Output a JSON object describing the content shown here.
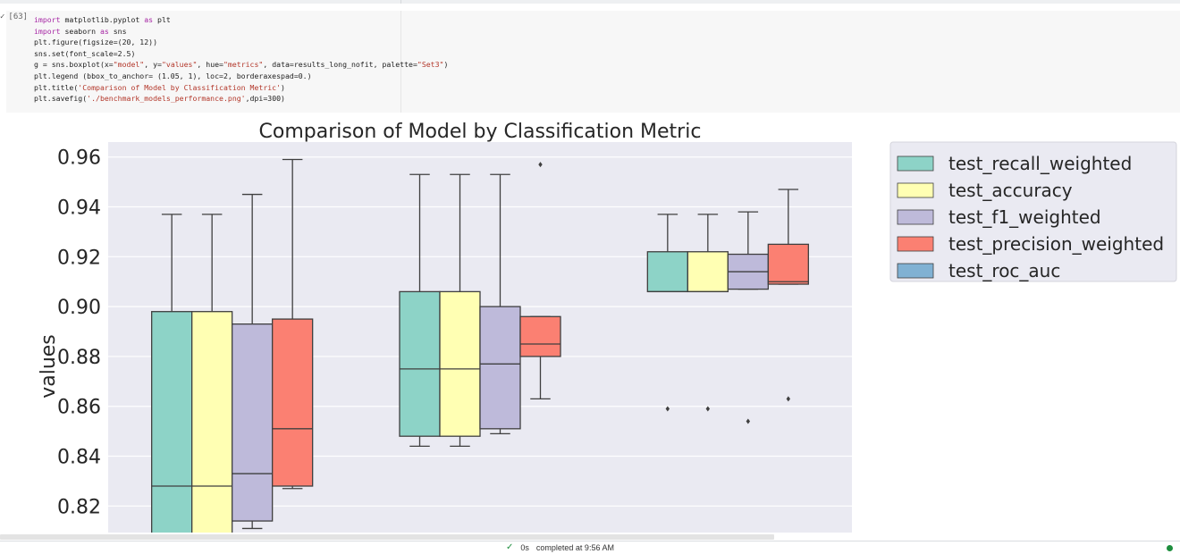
{
  "cell": {
    "exec_count": "[63]",
    "run_mark": "✓",
    "code_lines": [
      [
        {
          "t": "import",
          "c": "kw"
        },
        {
          "t": " matplotlib.pyplot ",
          "c": "fn"
        },
        {
          "t": "as",
          "c": "kw"
        },
        {
          "t": " plt",
          "c": "fn"
        }
      ],
      [
        {
          "t": "import",
          "c": "kw"
        },
        {
          "t": " seaborn ",
          "c": "fn"
        },
        {
          "t": "as",
          "c": "kw"
        },
        {
          "t": " sns",
          "c": "fn"
        }
      ],
      [
        {
          "t": "plt.figure(figsize=(20, 12))",
          "c": "fn"
        }
      ],
      [
        {
          "t": "sns.set(font_scale=2.5)",
          "c": "fn"
        }
      ],
      [
        {
          "t": "g = sns.boxplot(x=",
          "c": "fn"
        },
        {
          "t": "\"model\"",
          "c": "str"
        },
        {
          "t": ", y=",
          "c": "fn"
        },
        {
          "t": "\"values\"",
          "c": "str"
        },
        {
          "t": ", hue=",
          "c": "fn"
        },
        {
          "t": "\"metrics\"",
          "c": "str"
        },
        {
          "t": ", data=results_long_nofit, palette=",
          "c": "fn"
        },
        {
          "t": "\"Set3\"",
          "c": "str"
        },
        {
          "t": ")",
          "c": "fn"
        }
      ],
      [
        {
          "t": "plt.legend (bbox_to_anchor= (1.05, 1), loc=2, borderaxespad=0.)",
          "c": "fn"
        }
      ],
      [
        {
          "t": "plt.title(",
          "c": "fn"
        },
        {
          "t": "'Comparison of Model by Classification Metric'",
          "c": "str"
        },
        {
          "t": ")",
          "c": "fn"
        }
      ],
      [
        {
          "t": "plt.savefig(",
          "c": "fn"
        },
        {
          "t": "'./benchmark_models_performance.png'",
          "c": "str"
        },
        {
          "t": ",dpi=300)",
          "c": "fn"
        }
      ]
    ]
  },
  "chart_data": {
    "type": "box",
    "title": "Comparison of Model by Classification Metric",
    "xlabel": "",
    "ylabel": "values",
    "ylim": [
      0.809,
      0.966
    ],
    "yticks": [
      0.82,
      0.84,
      0.86,
      0.88,
      0.9,
      0.92,
      0.94,
      0.96
    ],
    "ytick_labels": [
      "0.82",
      "0.84",
      "0.86",
      "0.88",
      "0.90",
      "0.92",
      "0.94",
      "0.96"
    ],
    "grid": true,
    "legend_position": "outside-top-right",
    "colors": {
      "test_recall_weighted": "#8dd3c7",
      "test_accuracy": "#ffffb3",
      "test_f1_weighted": "#bebada",
      "test_precision_weighted": "#fb8072",
      "test_roc_auc": "#80b1d3"
    },
    "legend": [
      "test_recall_weighted",
      "test_accuracy",
      "test_f1_weighted",
      "test_precision_weighted",
      "test_roc_auc"
    ],
    "groups": [
      {
        "boxes": [
          {
            "metric": "test_recall_weighted",
            "whisker_low": 0.8,
            "q1": 0.8,
            "median": 0.828,
            "q3": 0.898,
            "whisker_high": 0.937,
            "outliers": []
          },
          {
            "metric": "test_accuracy",
            "whisker_low": 0.8,
            "q1": 0.8,
            "median": 0.828,
            "q3": 0.898,
            "whisker_high": 0.937,
            "outliers": []
          },
          {
            "metric": "test_f1_weighted",
            "whisker_low": 0.811,
            "q1": 0.814,
            "median": 0.833,
            "q3": 0.893,
            "whisker_high": 0.945,
            "outliers": []
          },
          {
            "metric": "test_precision_weighted",
            "whisker_low": 0.827,
            "q1": 0.828,
            "median": 0.851,
            "q3": 0.895,
            "whisker_high": 0.959,
            "outliers": []
          }
        ]
      },
      {
        "boxes": [
          {
            "metric": "test_recall_weighted",
            "whisker_low": 0.844,
            "q1": 0.848,
            "median": 0.875,
            "q3": 0.906,
            "whisker_high": 0.953,
            "outliers": []
          },
          {
            "metric": "test_accuracy",
            "whisker_low": 0.844,
            "q1": 0.848,
            "median": 0.875,
            "q3": 0.906,
            "whisker_high": 0.953,
            "outliers": []
          },
          {
            "metric": "test_f1_weighted",
            "whisker_low": 0.849,
            "q1": 0.851,
            "median": 0.877,
            "q3": 0.9,
            "whisker_high": 0.953,
            "outliers": []
          },
          {
            "metric": "test_precision_weighted",
            "whisker_low": 0.863,
            "q1": 0.88,
            "median": 0.885,
            "q3": 0.896,
            "whisker_high": 0.896,
            "outliers": [
              0.957
            ]
          }
        ]
      },
      {
        "boxes": [
          {
            "metric": "test_recall_weighted",
            "whisker_low": 0.906,
            "q1": 0.906,
            "median": 0.906,
            "q3": 0.922,
            "whisker_high": 0.937,
            "outliers": [
              0.859
            ]
          },
          {
            "metric": "test_accuracy",
            "whisker_low": 0.906,
            "q1": 0.906,
            "median": 0.906,
            "q3": 0.922,
            "whisker_high": 0.937,
            "outliers": [
              0.859
            ]
          },
          {
            "metric": "test_f1_weighted",
            "whisker_low": 0.907,
            "q1": 0.907,
            "median": 0.914,
            "q3": 0.921,
            "whisker_high": 0.938,
            "outliers": [
              0.854
            ]
          },
          {
            "metric": "test_precision_weighted",
            "whisker_low": 0.909,
            "q1": 0.909,
            "median": 0.91,
            "q3": 0.925,
            "whisker_high": 0.947,
            "outliers": [
              0.863
            ]
          }
        ]
      }
    ]
  },
  "status": {
    "check": "✓",
    "duration": "0s",
    "completed": "completed at 9:56 AM"
  }
}
